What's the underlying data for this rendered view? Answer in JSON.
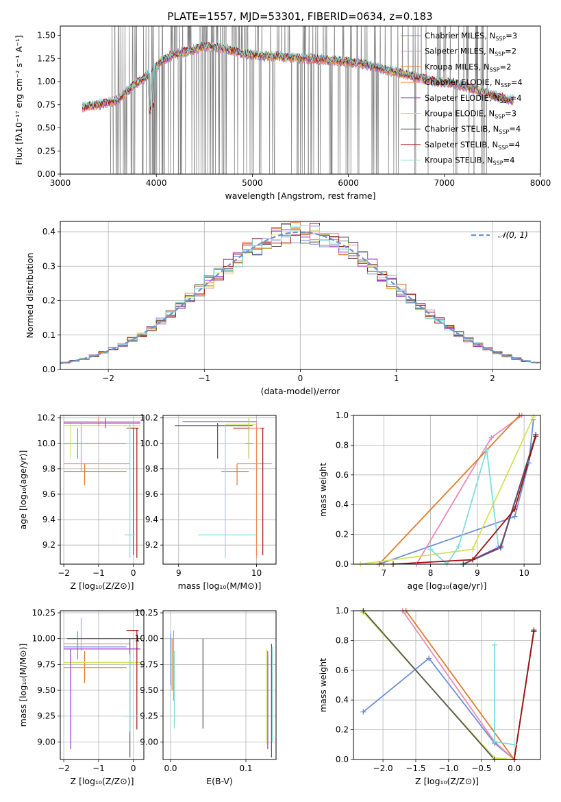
{
  "figure": {
    "title": "PLATE=1557, MJD=53301, FIBERID=0634, z=0.183"
  },
  "colors": {
    "Chabrier MILES": "#6a8fd8",
    "Salpeter MILES": "#e88ab5",
    "Kroupa MILES": "#e07a2a",
    "Chabrier ELODIE": "#f08a55",
    "Salpeter ELODIE": "#9932cc",
    "Kroupa ELODIE": "#d4e157",
    "Chabrier STELIB": "#555555",
    "Salpeter STELIB": "#a01010",
    "Kroupa STELIB": "#7fdcdc",
    "normal": "#6a8fd8",
    "data": "#808080"
  },
  "chart_data": [
    {
      "id": "spectrum",
      "type": "line",
      "xlabel": "wavelength [Angstrom, rest frame]",
      "ylabel": "Flux [fλ10⁻¹⁷ erg cm⁻² s⁻¹ A⁻¹]",
      "xlim": [
        3000,
        8000
      ],
      "ylim": [
        0,
        1.6
      ],
      "xticks": [
        3000,
        4000,
        5000,
        6000,
        7000,
        8000
      ],
      "yticks": [
        0.0,
        0.25,
        0.5,
        0.75,
        1.0,
        1.25,
        1.5
      ],
      "xtick_labels": [
        "3000",
        "4000",
        "5000",
        "6000",
        "7000",
        "8000"
      ],
      "ytick_labels": [
        "0.00",
        "0.25",
        "0.50",
        "0.75",
        "1.00",
        "1.25",
        "1.50"
      ],
      "continuum": {
        "x": [
          3230,
          3400,
          3600,
          3750,
          3850,
          3950,
          4050,
          4150,
          4300,
          4500,
          4700,
          4900,
          5100,
          5300,
          5500,
          5700,
          5900,
          6100,
          6300,
          6500,
          6700,
          6900,
          7100,
          7300,
          7500,
          7700
        ],
        "y": [
          0.72,
          0.75,
          0.8,
          0.95,
          1.02,
          1.1,
          1.22,
          1.28,
          1.32,
          1.38,
          1.36,
          1.3,
          1.28,
          1.27,
          1.25,
          1.24,
          1.22,
          1.2,
          1.15,
          1.1,
          1.05,
          1.0,
          0.98,
          0.92,
          0.85,
          0.8
        ]
      },
      "legend": [
        {
          "label": "Chabrier MILES, N",
          "sub": "SSP",
          "tail": "=3"
        },
        {
          "label": "Salpeter MILES, N",
          "sub": "SSP",
          "tail": "=2"
        },
        {
          "label": "Kroupa MILES, N",
          "sub": "SSP",
          "tail": "=2"
        },
        {
          "label": "Chabrier ELODIE, N",
          "sub": "SSP",
          "tail": "=4"
        },
        {
          "label": "Salpeter ELODIE, N",
          "sub": "SSP",
          "tail": "=4"
        },
        {
          "label": "Kroupa ELODIE, N",
          "sub": "SSP",
          "tail": "=3"
        },
        {
          "label": "Chabrier STELIB, N",
          "sub": "SSP",
          "tail": "=4"
        },
        {
          "label": "Salpeter STELIB, N",
          "sub": "SSP",
          "tail": "=4"
        },
        {
          "label": "Kroupa STELIB, N",
          "sub": "SSP",
          "tail": "=4"
        }
      ]
    },
    {
      "id": "residuals",
      "type": "line",
      "xlabel": "(data-model)/error",
      "ylabel": "Normed distribution",
      "xlim": [
        -2.5,
        2.5
      ],
      "ylim": [
        0,
        0.43
      ],
      "xticks": [
        -2,
        -1,
        0,
        1,
        2
      ],
      "yticks": [
        0.0,
        0.1,
        0.2,
        0.3,
        0.4
      ],
      "xtick_labels": [
        "−2",
        "−1",
        "0",
        "1",
        "2"
      ],
      "ytick_labels": [
        "0.0",
        "0.1",
        "0.2",
        "0.3",
        "0.4"
      ],
      "legend": [
        "𝒩(0, 1)"
      ],
      "grid": true
    },
    {
      "id": "age-vs-Z",
      "type": "scatter",
      "xlabel": "Z [log₁₀(Z/Z⊙)]",
      "ylabel": "age  [log₁₀(age/yr)]",
      "xlim": [
        -2.1,
        0.3
      ],
      "ylim": [
        9.05,
        10.22
      ],
      "xticks": [
        -2,
        -1,
        0
      ],
      "yticks": [
        9.2,
        9.4,
        9.6,
        9.8,
        10.0,
        10.2
      ],
      "xtick_labels": [
        "−2",
        "−1",
        "0"
      ],
      "ytick_labels": [
        "9.2",
        "9.4",
        "9.6",
        "9.8",
        "10.0",
        "10.2"
      ],
      "grid": true
    },
    {
      "id": "age-vs-mass",
      "type": "scatter",
      "xlabel": "mass [log₁₀(M/M⊙)]",
      "xlim": [
        8.8,
        10.25
      ],
      "ylim": [
        9.05,
        10.22
      ],
      "xticks": [
        9,
        10
      ],
      "yticks": [
        9.2,
        9.4,
        9.6,
        9.8,
        10.0,
        10.2
      ],
      "xtick_labels": [
        "9",
        "10"
      ],
      "ytick_labels": [
        "9.2",
        "9.4",
        "9.6",
        "9.8",
        "10.0",
        "10.2"
      ],
      "grid": true
    },
    {
      "id": "weight-vs-age",
      "type": "line",
      "xlabel": "age  [log₁₀(age/yr)]",
      "ylabel": "mass weight",
      "xlim": [
        6.35,
        10.35
      ],
      "ylim": [
        0,
        1
      ],
      "xticks": [
        7,
        8,
        9,
        10
      ],
      "yticks": [
        0.0,
        0.2,
        0.4,
        0.6,
        0.8,
        1.0
      ],
      "xtick_labels": [
        "7",
        "8",
        "9",
        "10"
      ],
      "ytick_labels": [
        "0.0",
        "0.2",
        "0.4",
        "0.6",
        "0.8",
        "1.0"
      ],
      "grid": true,
      "series": [
        {
          "name": "Chabrier MILES",
          "x": [
            6.9,
            9.8,
            10.1,
            10.2
          ],
          "y": [
            0.0,
            0.32,
            0.68,
            0.97
          ]
        },
        {
          "name": "Salpeter MILES",
          "x": [
            7.7,
            9.3,
            9.95
          ],
          "y": [
            0.0,
            0.85,
            1.0
          ]
        },
        {
          "name": "Kroupa MILES",
          "x": [
            6.9,
            9.9
          ],
          "y": [
            0.0,
            1.0
          ]
        },
        {
          "name": "Kroupa ELODIE",
          "x": [
            6.5,
            8.9,
            10.2
          ],
          "y": [
            0.0,
            0.1,
            0.99
          ]
        },
        {
          "name": "Kroupa STELIB",
          "x": [
            8.0,
            8.35,
            8.6,
            9.2,
            9.45
          ],
          "y": [
            0.1,
            0.0,
            0.12,
            0.77,
            0.12
          ]
        },
        {
          "name": "Salpeter ELODIE",
          "x": [
            8.7,
            9.5,
            10.25
          ],
          "y": [
            0.0,
            0.12,
            0.87
          ]
        },
        {
          "name": "Chabrier STELIB",
          "x": [
            8.7,
            9.5,
            10.25
          ],
          "y": [
            0.0,
            0.11,
            0.87
          ]
        },
        {
          "name": "Salpeter STELIB",
          "x": [
            7.2,
            8.9,
            9.8,
            10.25
          ],
          "y": [
            0.0,
            0.03,
            0.37,
            0.86
          ]
        }
      ]
    },
    {
      "id": "mass-vs-Z",
      "type": "scatter",
      "xlabel": "Z [log₁₀(Z/Z⊙)]",
      "ylabel": "mass [log₁₀(M/M⊙)]",
      "xlim": [
        -2.1,
        0.3
      ],
      "ylim": [
        8.83,
        10.27
      ],
      "xticks": [
        -2,
        -1,
        0
      ],
      "yticks": [
        9.0,
        9.25,
        9.5,
        9.75,
        10.0,
        10.25
      ],
      "xtick_labels": [
        "−2",
        "−1",
        "0"
      ],
      "ytick_labels": [
        "9.00",
        "9.25",
        "9.50",
        "9.75",
        "10.00",
        "10.25"
      ],
      "grid": true
    },
    {
      "id": "mass-vs-EBV",
      "type": "scatter",
      "xlabel": "E(B-V)",
      "xlim": [
        -0.01,
        0.14
      ],
      "ylim": [
        8.83,
        10.27
      ],
      "xticks": [
        0.0,
        0.1
      ],
      "yticks": [
        9.0,
        9.25,
        9.5,
        9.75,
        10.0,
        10.25
      ],
      "xtick_labels": [
        "0.0",
        "0.1"
      ],
      "ytick_labels": [
        "9.00",
        "9.25",
        "9.50",
        "9.75",
        "10.00",
        "10.25"
      ],
      "grid": true
    },
    {
      "id": "weight-vs-Z",
      "type": "line",
      "xlabel": "Z [log₁₀(Z/Z⊙)]",
      "ylabel": "mass weight",
      "xlim": [
        -2.45,
        0.4
      ],
      "ylim": [
        0,
        1
      ],
      "xticks": [
        -2.0,
        -1.5,
        -1.0,
        -0.5,
        0.0
      ],
      "yticks": [
        0.0,
        0.2,
        0.4,
        0.6,
        0.8,
        1.0
      ],
      "xtick_labels": [
        "−2.0",
        "−1.5",
        "−1.0",
        "−0.5",
        "0.0"
      ],
      "ytick_labels": [
        "0.0",
        "0.2",
        "0.4",
        "0.6",
        "0.8",
        "1.0"
      ],
      "grid": true,
      "series": [
        {
          "name": "Chabrier MILES",
          "x": [
            -2.3,
            -1.3,
            -0.3,
            0.0
          ],
          "y": [
            0.32,
            0.68,
            0.11,
            0.0
          ]
        },
        {
          "name": "Salpeter MILES",
          "x": [
            -1.7,
            -0.3,
            0.0
          ],
          "y": [
            1.0,
            0.12,
            0.0
          ]
        },
        {
          "name": "Kroupa MILES",
          "x": [
            -1.65,
            0.0
          ],
          "y": [
            1.0,
            0.0
          ]
        },
        {
          "name": "Kroupa ELODIE",
          "x": [
            -2.3,
            -0.3,
            0.0
          ],
          "y": [
            0.99,
            0.01,
            0.0
          ]
        },
        {
          "name": "Chabrier STELIB",
          "x": [
            -2.3,
            -0.3,
            0.0,
            0.3
          ],
          "y": [
            1.0,
            0.0,
            0.0,
            0.87
          ]
        },
        {
          "name": "Kroupa STELIB",
          "x": [
            -0.3,
            -0.3,
            0.0
          ],
          "y": [
            0.77,
            0.12,
            0.1
          ]
        },
        {
          "name": "Salpeter STELIB",
          "x": [
            0.0,
            0.3
          ],
          "y": [
            0.0,
            0.86
          ]
        }
      ]
    }
  ],
  "errorbars_ageZ": [
    {
      "c": "Chabrier MILES",
      "x": -1.6,
      "y": 10.0,
      "dx": [
        -2.0,
        -0.2
      ],
      "dy": [
        9.88,
        10.12
      ]
    },
    {
      "c": "Salpeter MILES",
      "x": -1.5,
      "y": 9.84,
      "dx": [
        -2.0,
        -0.1
      ],
      "dy": [
        9.78,
        10.16
      ]
    },
    {
      "c": "Kroupa MILES",
      "x": -1.4,
      "y": 9.78,
      "dx": [
        -2.0,
        -0.2
      ],
      "dy": [
        9.67,
        9.84
      ]
    },
    {
      "c": "Kroupa ELODIE",
      "x": -1.8,
      "y": 10.14,
      "dx": [
        -2.0,
        0.2
      ],
      "dy": [
        9.88,
        10.16
      ]
    },
    {
      "c": "Chabrier ELODIE",
      "x": -1.0,
      "y": 10.17,
      "dx": [
        -2.0,
        0.2
      ],
      "dy": [
        10.14,
        10.2
      ]
    },
    {
      "c": "Salpeter ELODIE",
      "x": -0.8,
      "y": 10.16,
      "dx": [
        -2.0,
        0.2
      ],
      "dy": [
        10.12,
        10.2
      ]
    },
    {
      "c": "Chabrier STELIB",
      "x": 0.0,
      "y": 10.12,
      "dx": [
        -0.2,
        0.15
      ],
      "dy": [
        9.12,
        10.12
      ]
    },
    {
      "c": "Salpeter STELIB",
      "x": 0.1,
      "y": 10.12,
      "dx": [
        -0.1,
        0.15
      ],
      "dy": [
        9.1,
        10.12
      ]
    },
    {
      "c": "Kroupa STELIB",
      "x": -0.1,
      "y": 9.28,
      "dx": [
        -0.25,
        0.05
      ],
      "dy": [
        9.1,
        10.15
      ]
    }
  ],
  "errorbars_ageMass": [
    {
      "c": "Chabrier MILES",
      "x": 9.9,
      "y": 10.0,
      "dx": [
        9.85,
        9.95
      ],
      "dy": [
        9.88,
        10.12
      ]
    },
    {
      "c": "Salpeter MILES",
      "x": 10.0,
      "y": 9.84,
      "dx": [
        9.75,
        10.2
      ],
      "dy": [
        9.78,
        10.16
      ]
    },
    {
      "c": "Kroupa MILES",
      "x": 9.75,
      "y": 9.78,
      "dx": [
        9.55,
        9.9
      ],
      "dy": [
        9.67,
        9.84
      ]
    },
    {
      "c": "Chabrier STELIB",
      "x": 9.5,
      "y": 10.14,
      "dx": [
        8.95,
        9.95
      ],
      "dy": [
        9.88,
        10.16
      ]
    },
    {
      "c": "Salpeter ELODIE",
      "x": 9.9,
      "y": 10.17,
      "dx": [
        9.05,
        10.0
      ],
      "dy": [
        9.88,
        10.2
      ]
    },
    {
      "c": "Kroupa ELODIE",
      "x": 9.9,
      "y": 10.15,
      "dx": [
        9.6,
        10.0
      ],
      "dy": [
        9.88,
        10.2
      ]
    },
    {
      "c": "Salpeter STELIB",
      "x": 10.08,
      "y": 10.12,
      "dx": [
        9.7,
        10.1
      ],
      "dy": [
        9.12,
        10.12
      ]
    },
    {
      "c": "Chabrier ELODIE",
      "x": 10.0,
      "y": 10.12,
      "dx": [
        9.9,
        10.05
      ],
      "dy": [
        9.1,
        10.12
      ]
    },
    {
      "c": "Kroupa STELIB",
      "x": 9.6,
      "y": 9.28,
      "dx": [
        9.25,
        10.0
      ],
      "dy": [
        9.1,
        10.15
      ]
    }
  ],
  "errorbars_massZ": [
    {
      "c": "Chabrier MILES",
      "x": -1.6,
      "y": 9.92,
      "dx": [
        -2.0,
        -0.2
      ],
      "dy": [
        9.8,
        10.07
      ]
    },
    {
      "c": "Salpeter MILES",
      "x": -1.5,
      "y": 9.95,
      "dx": [
        -2.0,
        -0.1
      ],
      "dy": [
        9.88,
        10.2
      ]
    },
    {
      "c": "Kroupa MILES",
      "x": -1.4,
      "y": 9.72,
      "dx": [
        -2.0,
        -0.2
      ],
      "dy": [
        9.57,
        9.88
      ]
    },
    {
      "c": "Kroupa ELODIE",
      "x": -1.8,
      "y": 9.77,
      "dx": [
        -2.0,
        0.2
      ],
      "dy": [
        9.5,
        9.9
      ]
    },
    {
      "c": "Chabrier STELIB",
      "x": -0.1,
      "y": 10.0,
      "dx": [
        -1.9,
        0.2
      ],
      "dy": [
        8.85,
        10.0
      ]
    },
    {
      "c": "Salpeter ELODIE",
      "x": -1.8,
      "y": 9.9,
      "dx": [
        -2.0,
        0.2
      ],
      "dy": [
        8.93,
        9.9
      ]
    },
    {
      "c": "Salpeter STELIB",
      "x": 0.1,
      "y": 10.08,
      "dx": [
        -0.2,
        0.15
      ],
      "dy": [
        9.12,
        10.08
      ]
    },
    {
      "c": "Kroupa STELIB",
      "x": -0.1,
      "y": 9.25,
      "dx": [
        -0.25,
        0.15
      ],
      "dy": [
        9.1,
        9.85
      ]
    }
  ],
  "errorbars_massEBV": [
    {
      "c": "Chabrier MILES",
      "x": 0.0,
      "y": 9.9,
      "dx": [
        0.0,
        0.0
      ],
      "dy": [
        9.55,
        10.05
      ]
    },
    {
      "c": "Kroupa MILES",
      "x": 0.002,
      "y": 9.8,
      "dx": [
        0.002,
        0.002
      ],
      "dy": [
        9.5,
        10.0
      ]
    },
    {
      "c": "Chabrier ELODIE",
      "x": 0.004,
      "y": 9.75,
      "dx": [
        0.004,
        0.004
      ],
      "dy": [
        9.4,
        10.08
      ]
    },
    {
      "c": "Kroupa STELIB",
      "x": 0.005,
      "y": 9.5,
      "dx": [
        0.005,
        0.005
      ],
      "dy": [
        9.13,
        9.88
      ]
    },
    {
      "c": "Chabrier STELIB",
      "x": 0.043,
      "y": 9.6,
      "dx": [
        0.043,
        0.043
      ],
      "dy": [
        9.13,
        10.0
      ]
    },
    {
      "c": "Kroupa ELODIE",
      "x": 0.127,
      "y": 9.6,
      "dx": [
        0.127,
        0.127
      ],
      "dy": [
        8.98,
        9.9
      ]
    },
    {
      "c": "Salpeter ELODIE",
      "x": 0.129,
      "y": 9.3,
      "dx": [
        0.129,
        0.129
      ],
      "dy": [
        8.93,
        9.88
      ]
    },
    {
      "c": "Chabrier STELIB",
      "x": 0.134,
      "y": 9.5,
      "dx": [
        0.134,
        0.134
      ],
      "dy": [
        8.85,
        9.95
      ]
    },
    {
      "c": "Kroupa STELIB",
      "x": 0.135,
      "y": 9.5,
      "dx": [
        0.135,
        0.135
      ],
      "dy": [
        9.0,
        9.92
      ]
    }
  ]
}
